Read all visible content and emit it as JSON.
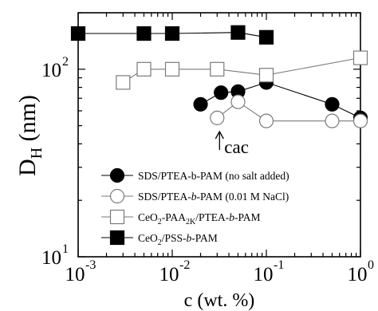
{
  "chart_data": {
    "type": "scatter",
    "xscale": "log",
    "yscale": "log",
    "xlim": [
      0.001,
      1
    ],
    "ylim": [
      10,
      200
    ],
    "grid": false,
    "legend_position": "bottom-left",
    "ylabel_main": "D",
    "ylabel_sub": "H",
    "ylabel_unit": " (nm)",
    "xlabel": "c (wt. %)",
    "x_ticks": [
      {
        "value": 0.001,
        "base": "10",
        "exp": "-3"
      },
      {
        "value": 0.01,
        "base": "10",
        "exp": "-2"
      },
      {
        "value": 0.1,
        "base": "10",
        "exp": "-1"
      },
      {
        "value": 1,
        "base": "10",
        "exp": "0"
      }
    ],
    "y_ticks": [
      {
        "value": 10,
        "base": "10",
        "exp": "1"
      },
      {
        "value": 100,
        "base": "10",
        "exp": "2"
      }
    ],
    "annotation": {
      "text": "cac",
      "x": 0.03
    },
    "series": [
      {
        "name": "SDS/PTEA-b-PAM (no salt added)",
        "legend_parts": [
          {
            "t": "SDS/PTEA-b-PAM (no salt added)"
          }
        ],
        "marker": "circle",
        "filled": true,
        "x": [
          0.02,
          0.033,
          0.05,
          0.1,
          0.5,
          1.0
        ],
        "y": [
          65,
          75,
          76,
          85,
          65,
          55
        ]
      },
      {
        "name": "SDS/PTEA-b-PAM (0.01 M NaCl)",
        "legend_parts": [
          {
            "t": "SDS/PTEA-"
          },
          {
            "t": "b",
            "i": true
          },
          {
            "t": "-PAM (0.01 M NaCl)"
          }
        ],
        "marker": "circle",
        "filled": false,
        "x": [
          0.03,
          0.05,
          0.1,
          0.5,
          1.0
        ],
        "y": [
          55,
          67,
          53,
          53,
          53
        ]
      },
      {
        "name": "CeO2-PAA2K/PTEA-b-PAM",
        "legend_parts": [
          {
            "t": "CeO"
          },
          {
            "t": "2",
            "sub": true
          },
          {
            "t": "-PAA"
          },
          {
            "t": "2K",
            "sub": true
          },
          {
            "t": "/PTEA-"
          },
          {
            "t": "b",
            "i": true
          },
          {
            "t": "-PAM"
          }
        ],
        "marker": "square",
        "filled": false,
        "x": [
          0.003,
          0.005,
          0.01,
          0.03,
          0.1,
          1.0
        ],
        "y": [
          85,
          100,
          100,
          100,
          93,
          115
        ]
      },
      {
        "name": "CeO2/PSS-b-PAM",
        "legend_parts": [
          {
            "t": "CeO"
          },
          {
            "t": "2",
            "sub": true
          },
          {
            "t": "/PSS-"
          },
          {
            "t": "b",
            "i": true
          },
          {
            "t": "-PAM"
          }
        ],
        "marker": "square",
        "filled": true,
        "x": [
          0.001,
          0.005,
          0.01,
          0.05,
          0.1
        ],
        "y": [
          155,
          155,
          155,
          157,
          148
        ]
      }
    ]
  }
}
